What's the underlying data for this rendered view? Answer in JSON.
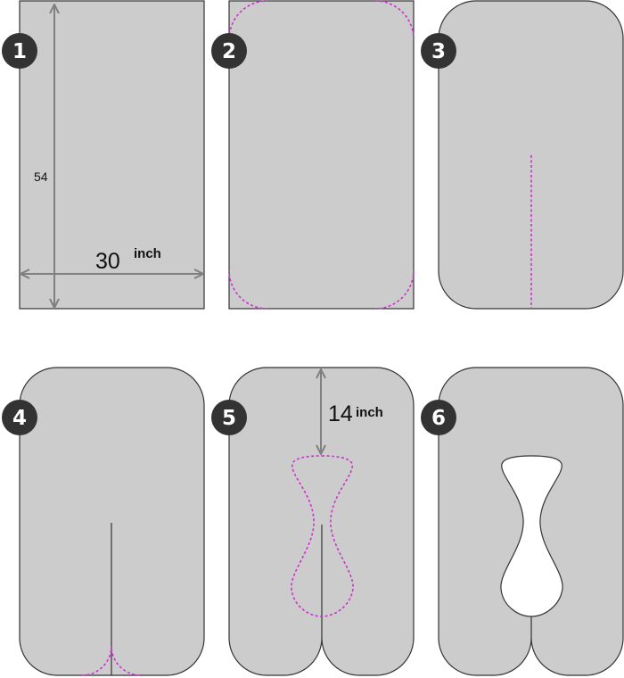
{
  "steps": [
    {
      "number": "1"
    },
    {
      "number": "2"
    },
    {
      "number": "3"
    },
    {
      "number": "4"
    },
    {
      "number": "5"
    },
    {
      "number": "6"
    }
  ],
  "dimensions": {
    "height_value": "54",
    "width_value": "30",
    "width_unit": "inch",
    "neck_value": "14",
    "neck_unit": "inch"
  },
  "colors": {
    "fabric": "#cccccc",
    "outline": "#333333",
    "cut_line": "#cc33cc",
    "badge": "#333333",
    "arrow": "#808080",
    "hole": "#ffffff"
  }
}
